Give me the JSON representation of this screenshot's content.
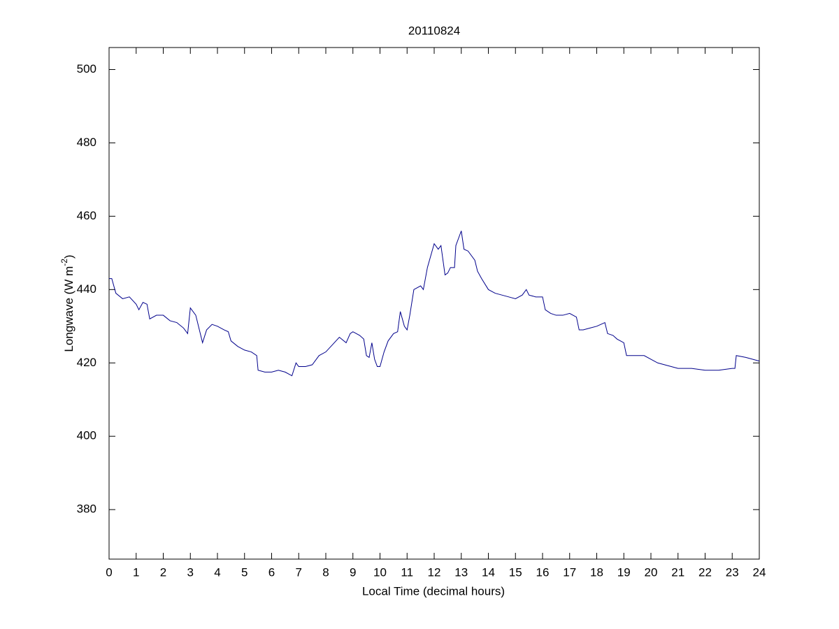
{
  "chart_data": {
    "type": "line",
    "title": "20110824",
    "xlabel": "Local Time (decimal hours)",
    "ylabel_parts": [
      "Longwave (W m",
      "-2",
      ")"
    ],
    "xlim": [
      0,
      24
    ],
    "ylim": [
      366.5,
      506
    ],
    "xticks": [
      0,
      1,
      2,
      3,
      4,
      5,
      6,
      7,
      8,
      9,
      10,
      11,
      12,
      13,
      14,
      15,
      16,
      17,
      18,
      19,
      20,
      21,
      22,
      23,
      24
    ],
    "yticks": [
      380,
      400,
      420,
      440,
      460,
      480,
      500
    ],
    "grid": false,
    "series": [
      {
        "name": "Longwave",
        "color": "#00008b",
        "x": [
          0,
          0.1,
          0.25,
          0.5,
          0.75,
          1.0,
          1.1,
          1.25,
          1.4,
          1.5,
          1.75,
          2.0,
          2.25,
          2.5,
          2.75,
          2.9,
          3.0,
          3.2,
          3.3,
          3.45,
          3.6,
          3.8,
          4.0,
          4.25,
          4.4,
          4.5,
          4.75,
          5.0,
          5.25,
          5.45,
          5.5,
          5.75,
          6.0,
          6.25,
          6.5,
          6.75,
          6.9,
          7.0,
          7.25,
          7.5,
          7.75,
          8.0,
          8.25,
          8.5,
          8.75,
          8.9,
          9.0,
          9.25,
          9.4,
          9.5,
          9.6,
          9.7,
          9.8,
          9.9,
          10.0,
          10.15,
          10.3,
          10.5,
          10.65,
          10.75,
          10.9,
          11.0,
          11.1,
          11.25,
          11.5,
          11.6,
          11.75,
          12.0,
          12.15,
          12.25,
          12.4,
          12.5,
          12.6,
          12.75,
          12.8,
          13.0,
          13.1,
          13.25,
          13.5,
          13.6,
          13.75,
          14.0,
          14.25,
          14.5,
          14.75,
          15.0,
          15.25,
          15.4,
          15.5,
          15.75,
          16.0,
          16.1,
          16.3,
          16.5,
          16.75,
          17.0,
          17.25,
          17.35,
          17.5,
          17.75,
          18.0,
          18.3,
          18.4,
          18.6,
          18.75,
          19.0,
          19.1,
          19.5,
          19.75,
          20.0,
          20.25,
          20.5,
          20.75,
          21.0,
          21.5,
          22.0,
          22.5,
          23.0,
          23.1,
          23.15,
          23.5,
          24.0
        ],
        "values": [
          443,
          443,
          439,
          437.5,
          438,
          436,
          434.5,
          436.5,
          436,
          432,
          433,
          433,
          431.5,
          431,
          429.5,
          428,
          435,
          433,
          430,
          425.5,
          429,
          430.5,
          430,
          429,
          428.5,
          426,
          424.5,
          423.5,
          423,
          422,
          418,
          417.5,
          417.5,
          418,
          417.5,
          416.5,
          420,
          419,
          419,
          419.5,
          422,
          423,
          425,
          427,
          425.5,
          428,
          428.5,
          427.5,
          426.5,
          422,
          421.5,
          425.5,
          421,
          419,
          419,
          423,
          426,
          428,
          428.5,
          434,
          430,
          429,
          433,
          440,
          441,
          440,
          446,
          452.5,
          451,
          452,
          444,
          444.5,
          446,
          446,
          452,
          456,
          451,
          450.5,
          448,
          445,
          443,
          440,
          439,
          438.5,
          438,
          437.5,
          438.5,
          440,
          438.5,
          438,
          438,
          434.5,
          433.5,
          433,
          433,
          433.5,
          432.5,
          429,
          429,
          429.5,
          430,
          431,
          428,
          427.5,
          426.5,
          425.5,
          422,
          422,
          422,
          421,
          420,
          419.5,
          419,
          418.5,
          418.5,
          418,
          418,
          418.5,
          418.5,
          422,
          421.5,
          420.5
        ]
      }
    ]
  }
}
